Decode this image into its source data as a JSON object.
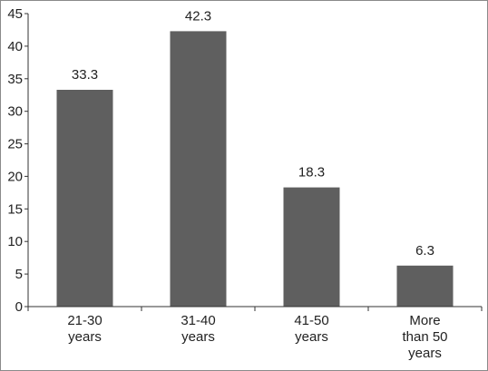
{
  "chart_data": {
    "type": "bar",
    "categories": [
      [
        "21-30",
        "years"
      ],
      [
        "31-40",
        "years"
      ],
      [
        "41-50",
        "years"
      ],
      [
        "More",
        "than 50",
        "years"
      ]
    ],
    "values": [
      33.3,
      42.3,
      18.3,
      6.3
    ],
    "data_labels": [
      "33.3",
      "42.3",
      "18.3",
      "6.3"
    ],
    "ylim": [
      0,
      45
    ],
    "yticks": [
      0,
      5,
      10,
      15,
      20,
      25,
      30,
      35,
      40,
      45
    ],
    "grid": false,
    "bar_color": "#5f5f5f",
    "axis_color": "#333333"
  }
}
